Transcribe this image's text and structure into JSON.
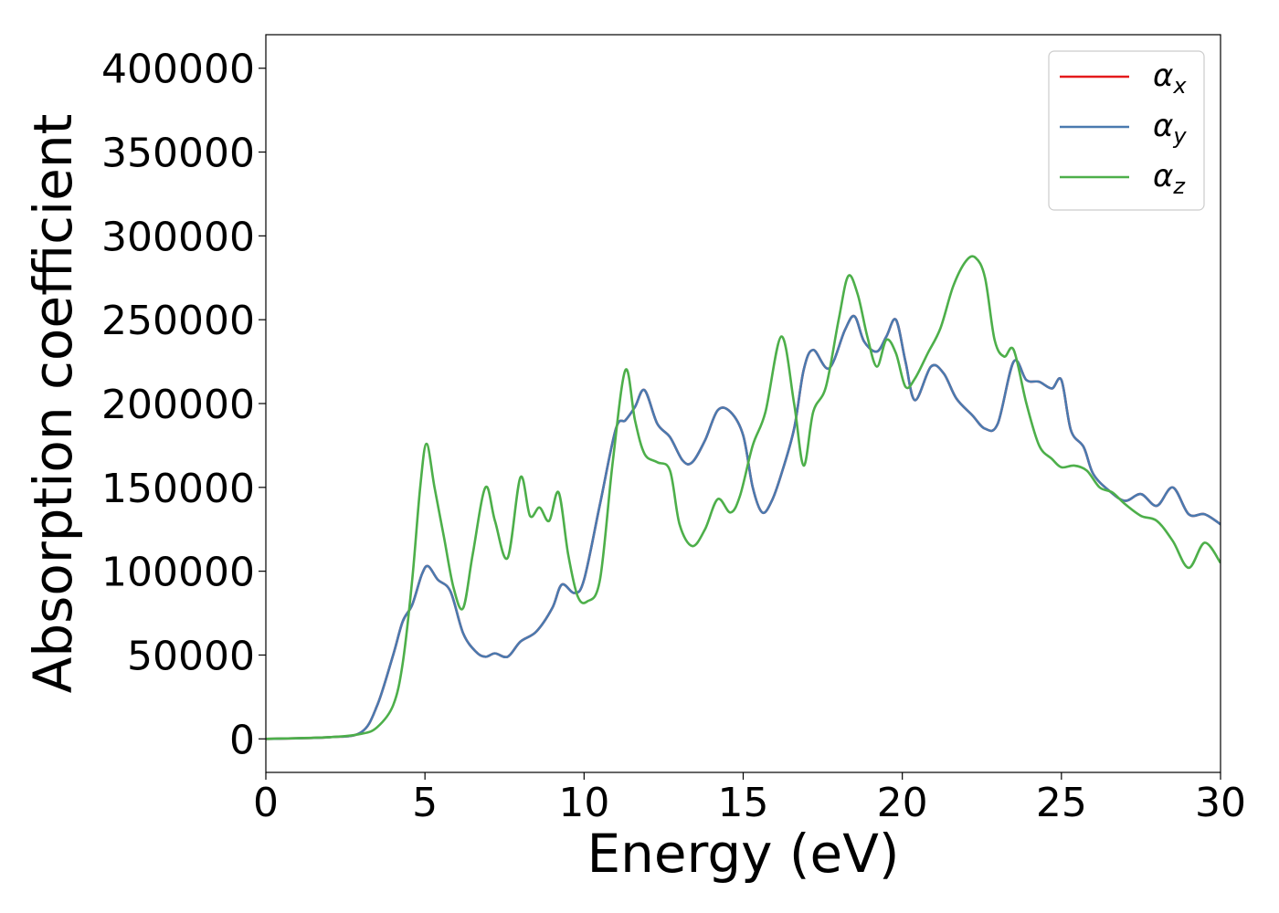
{
  "chart_data": {
    "type": "line",
    "title": "",
    "xlabel": "Energy (eV)",
    "ylabel": "Absorption coefficient",
    "xlim": [
      0,
      30
    ],
    "ylim": [
      -20000,
      420000
    ],
    "xticks": [
      0,
      5,
      10,
      15,
      20,
      25,
      30
    ],
    "yticks": [
      0,
      50000,
      100000,
      150000,
      200000,
      250000,
      300000,
      350000,
      400000
    ],
    "grid": false,
    "legend_position": "top-right",
    "series": [
      {
        "name": "α_x",
        "symbol": "α",
        "subscript": "x",
        "color": "#e41a1c",
        "x": [
          0,
          2,
          3,
          3.5,
          4,
          4.3,
          4.6,
          4.9,
          5.1,
          5.4,
          5.8,
          6.2,
          6.6,
          6.9,
          7.2,
          7.6,
          8,
          8.5,
          9,
          9.3,
          9.7,
          10,
          10.5,
          11,
          11.3,
          11.6,
          11.9,
          12.3,
          12.7,
          13.1,
          13.4,
          13.8,
          14.2,
          14.6,
          15,
          15.3,
          15.6,
          15.9,
          16.2,
          16.6,
          16.9,
          17.2,
          17.7,
          18.2,
          18.5,
          18.8,
          19.2,
          19.5,
          19.8,
          20.1,
          20.4,
          20.9,
          21.3,
          21.7,
          22.2,
          22.6,
          23,
          23.5,
          23.9,
          24.3,
          24.7,
          25,
          25.3,
          25.7,
          26,
          26.5,
          27,
          27.5,
          28,
          28.5,
          29,
          29.5,
          30
        ],
        "y": [
          0,
          1000,
          4000,
          20000,
          50000,
          70000,
          80000,
          98000,
          103000,
          95000,
          88000,
          63000,
          52000,
          49000,
          51000,
          49000,
          58000,
          64000,
          78000,
          92000,
          87000,
          95000,
          140000,
          185000,
          190000,
          198000,
          208000,
          188000,
          180000,
          166000,
          165000,
          178000,
          196000,
          195000,
          181000,
          150000,
          135000,
          142000,
          158000,
          185000,
          220000,
          232000,
          221000,
          244000,
          252000,
          237000,
          231000,
          240000,
          250000,
          225000,
          202000,
          222000,
          218000,
          203000,
          193000,
          185000,
          188000,
          225000,
          214000,
          213000,
          209000,
          214000,
          184000,
          174000,
          158000,
          148000,
          142000,
          146000,
          139000,
          150000,
          134000,
          134000,
          128000
        ]
      },
      {
        "name": "α_y",
        "symbol": "α",
        "subscript": "y",
        "color": "#4a7aaf",
        "x": [
          0,
          2,
          3,
          3.5,
          4,
          4.3,
          4.6,
          4.9,
          5.1,
          5.4,
          5.8,
          6.2,
          6.6,
          6.9,
          7.2,
          7.6,
          8,
          8.5,
          9,
          9.3,
          9.7,
          10,
          10.5,
          11,
          11.3,
          11.6,
          11.9,
          12.3,
          12.7,
          13.1,
          13.4,
          13.8,
          14.2,
          14.6,
          15,
          15.3,
          15.6,
          15.9,
          16.2,
          16.6,
          16.9,
          17.2,
          17.7,
          18.2,
          18.5,
          18.8,
          19.2,
          19.5,
          19.8,
          20.1,
          20.4,
          20.9,
          21.3,
          21.7,
          22.2,
          22.6,
          23,
          23.5,
          23.9,
          24.3,
          24.7,
          25,
          25.3,
          25.7,
          26,
          26.5,
          27,
          27.5,
          28,
          28.5,
          29,
          29.5,
          30
        ],
        "y": [
          0,
          1000,
          4000,
          20000,
          50000,
          70000,
          80000,
          98000,
          103000,
          95000,
          88000,
          63000,
          52000,
          49000,
          51000,
          49000,
          58000,
          64000,
          78000,
          92000,
          87000,
          95000,
          140000,
          185000,
          190000,
          198000,
          208000,
          188000,
          180000,
          166000,
          165000,
          178000,
          196000,
          195000,
          181000,
          150000,
          135000,
          142000,
          158000,
          185000,
          220000,
          232000,
          221000,
          244000,
          252000,
          237000,
          231000,
          240000,
          250000,
          225000,
          202000,
          222000,
          218000,
          203000,
          193000,
          185000,
          188000,
          225000,
          214000,
          213000,
          209000,
          214000,
          184000,
          174000,
          158000,
          148000,
          142000,
          146000,
          139000,
          150000,
          134000,
          134000,
          128000
        ]
      },
      {
        "name": "α_z",
        "symbol": "α",
        "subscript": "z",
        "color": "#4daf4a",
        "x": [
          0,
          2,
          3,
          3.5,
          4,
          4.3,
          4.6,
          4.85,
          5.05,
          5.3,
          5.6,
          5.9,
          6.2,
          6.5,
          6.9,
          7.2,
          7.6,
          8,
          8.3,
          8.6,
          8.9,
          9.2,
          9.5,
          9.8,
          10.1,
          10.5,
          10.9,
          11.3,
          11.6,
          11.9,
          12.3,
          12.7,
          13,
          13.4,
          13.8,
          14.2,
          14.6,
          14.9,
          15.3,
          15.7,
          16.2,
          16.6,
          16.9,
          17.2,
          17.6,
          18,
          18.3,
          18.6,
          18.9,
          19.2,
          19.5,
          19.8,
          20.1,
          20.4,
          20.8,
          21.2,
          21.6,
          22,
          22.3,
          22.6,
          22.9,
          23.2,
          23.5,
          23.9,
          24.3,
          24.7,
          25,
          25.4,
          25.8,
          26.2,
          26.6,
          27,
          27.5,
          28,
          28.5,
          29,
          29.5,
          30
        ],
        "y": [
          0,
          1000,
          3000,
          7000,
          20000,
          45000,
          95000,
          150000,
          176000,
          150000,
          120000,
          90000,
          78000,
          110000,
          150000,
          130000,
          108000,
          156000,
          133000,
          138000,
          130000,
          147000,
          110000,
          85000,
          82000,
          95000,
          165000,
          220000,
          190000,
          170000,
          165000,
          160000,
          128000,
          115000,
          125000,
          143000,
          135000,
          145000,
          175000,
          195000,
          240000,
          200000,
          163000,
          195000,
          210000,
          250000,
          276000,
          265000,
          240000,
          222000,
          238000,
          230000,
          210000,
          215000,
          230000,
          245000,
          270000,
          285000,
          287000,
          275000,
          238000,
          228000,
          232000,
          200000,
          175000,
          167000,
          162000,
          163000,
          160000,
          150000,
          147000,
          140000,
          133000,
          130000,
          118000,
          102000,
          117000,
          105000
        ]
      }
    ]
  }
}
